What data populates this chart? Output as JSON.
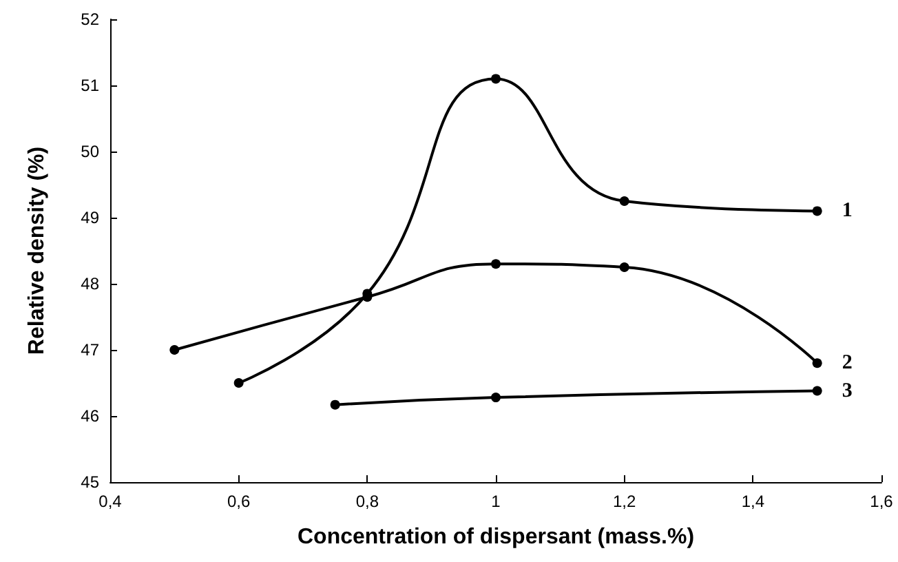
{
  "chart_data": {
    "type": "line",
    "xlabel": "Concentration of dispersant (mass.%)",
    "ylabel": "Relative density (%)",
    "series": [
      {
        "name": "1",
        "color": "#000000",
        "x": [
          0.6,
          0.8,
          1.0,
          1.2,
          1.5
        ],
        "values": [
          46.5,
          47.85,
          51.1,
          49.25,
          49.1
        ]
      },
      {
        "name": "2",
        "color": "#000000",
        "x": [
          0.5,
          0.8,
          1.0,
          1.2,
          1.5
        ],
        "values": [
          47.0,
          47.8,
          48.3,
          48.25,
          46.8
        ]
      },
      {
        "name": "3",
        "color": "#000000",
        "x": [
          0.75,
          1.0,
          1.5
        ],
        "values": [
          46.17,
          46.28,
          46.38
        ]
      }
    ],
    "xlim": [
      0.4,
      1.6
    ],
    "xticks": [
      {
        "value": 0.4,
        "label": "0,4"
      },
      {
        "value": 0.6,
        "label": "0,6"
      },
      {
        "value": 0.8,
        "label": "0,8"
      },
      {
        "value": 1,
        "label": "1"
      },
      {
        "value": 1.2,
        "label": "1,2"
      },
      {
        "value": 1.4,
        "label": "1,4"
      },
      {
        "value": 1.6,
        "label": "1,6"
      }
    ],
    "ylim": [
      45,
      52
    ],
    "yticks": [
      45,
      46,
      47,
      48,
      49,
      50,
      51,
      52
    ],
    "grid": false,
    "legend": false,
    "marker": "circle",
    "line_style": "solid"
  }
}
